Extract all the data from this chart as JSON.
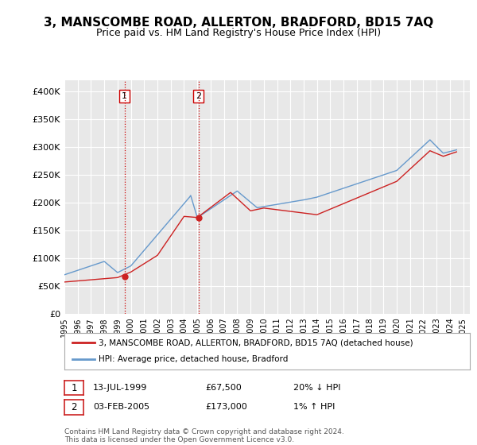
{
  "title": "3, MANSCOMBE ROAD, ALLERTON, BRADFORD, BD15 7AQ",
  "subtitle": "Price paid vs. HM Land Registry's House Price Index (HPI)",
  "title_fontsize": 11,
  "subtitle_fontsize": 9,
  "ylabel_ticks": [
    "£0",
    "£50K",
    "£100K",
    "£150K",
    "£200K",
    "£250K",
    "£300K",
    "£350K",
    "£400K"
  ],
  "ytick_values": [
    0,
    50000,
    100000,
    150000,
    200000,
    250000,
    300000,
    350000,
    400000
  ],
  "ylim": [
    0,
    420000
  ],
  "xlim_start": 1995.0,
  "xlim_end": 2025.5,
  "background_color": "#ffffff",
  "plot_background": "#e8e8e8",
  "grid_color": "#ffffff",
  "hpi_color": "#6699cc",
  "price_color": "#cc2222",
  "point1_x": 1999.53,
  "point1_y": 67500,
  "point2_x": 2005.09,
  "point2_y": 173000,
  "legend_label_red": "3, MANSCOMBE ROAD, ALLERTON, BRADFORD, BD15 7AQ (detached house)",
  "legend_label_blue": "HPI: Average price, detached house, Bradford",
  "table_row1": [
    "1",
    "13-JUL-1999",
    "£67,500",
    "20% ↓ HPI"
  ],
  "table_row2": [
    "2",
    "03-FEB-2005",
    "£173,000",
    "1% ↑ HPI"
  ],
  "footer": "Contains HM Land Registry data © Crown copyright and database right 2024.\nThis data is licensed under the Open Government Licence v3.0."
}
